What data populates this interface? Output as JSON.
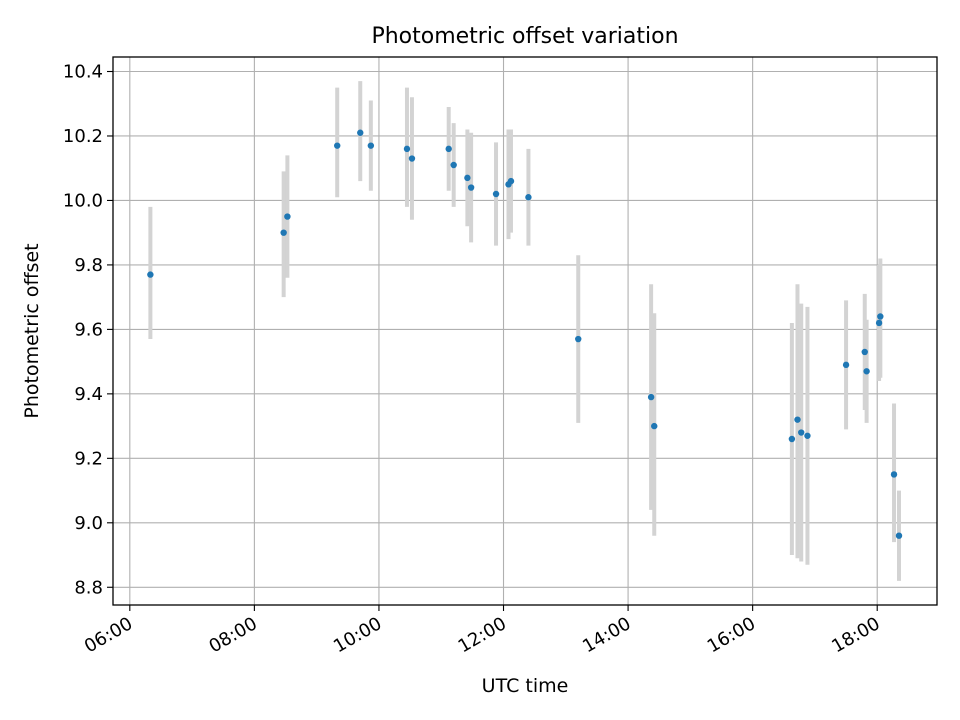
{
  "chart_data": {
    "type": "scatter",
    "title": "Photometric offset variation",
    "xlabel": "UTC time",
    "ylabel": "Photometric offset",
    "x_unit": "hours UTC",
    "xlim": [
      5.73,
      18.96
    ],
    "ylim": [
      8.745,
      10.445
    ],
    "xticks": [
      6,
      8,
      10,
      12,
      14,
      16,
      18
    ],
    "xtick_labels": [
      "06:00",
      "08:00",
      "10:00",
      "12:00",
      "14:00",
      "16:00",
      "18:00"
    ],
    "yticks": [
      8.8,
      9.0,
      9.2,
      9.4,
      9.6,
      9.8,
      10.0,
      10.2,
      10.4
    ],
    "ytick_labels": [
      "8.8",
      "9.0",
      "9.2",
      "9.4",
      "9.6",
      "9.8",
      "10.0",
      "10.2",
      "10.4"
    ],
    "grid": true,
    "legend": "none",
    "colors": {
      "point": "#1f77b4",
      "errorbar": "#d3d3d3",
      "grid": "#b0b0b0"
    },
    "points": [
      {
        "x": 6.33,
        "y": 9.77,
        "lo": 9.57,
        "hi": 9.98
      },
      {
        "x": 8.47,
        "y": 9.9,
        "lo": 9.7,
        "hi": 10.09
      },
      {
        "x": 8.53,
        "y": 9.95,
        "lo": 9.76,
        "hi": 10.14
      },
      {
        "x": 9.33,
        "y": 10.17,
        "lo": 10.01,
        "hi": 10.35
      },
      {
        "x": 9.7,
        "y": 10.21,
        "lo": 10.06,
        "hi": 10.37
      },
      {
        "x": 9.87,
        "y": 10.17,
        "lo": 10.03,
        "hi": 10.31
      },
      {
        "x": 10.45,
        "y": 10.16,
        "lo": 9.98,
        "hi": 10.35
      },
      {
        "x": 10.53,
        "y": 10.13,
        "lo": 9.94,
        "hi": 10.32
      },
      {
        "x": 11.12,
        "y": 10.16,
        "lo": 10.03,
        "hi": 10.29
      },
      {
        "x": 11.2,
        "y": 10.11,
        "lo": 9.98,
        "hi": 10.24
      },
      {
        "x": 11.42,
        "y": 10.07,
        "lo": 9.92,
        "hi": 10.22
      },
      {
        "x": 11.48,
        "y": 10.04,
        "lo": 9.87,
        "hi": 10.21
      },
      {
        "x": 11.88,
        "y": 10.02,
        "lo": 9.86,
        "hi": 10.18
      },
      {
        "x": 12.08,
        "y": 10.05,
        "lo": 9.88,
        "hi": 10.22
      },
      {
        "x": 12.12,
        "y": 10.06,
        "lo": 9.9,
        "hi": 10.22
      },
      {
        "x": 12.4,
        "y": 10.01,
        "lo": 9.86,
        "hi": 10.16
      },
      {
        "x": 13.2,
        "y": 9.57,
        "lo": 9.31,
        "hi": 9.83
      },
      {
        "x": 14.37,
        "y": 9.39,
        "lo": 9.04,
        "hi": 9.74
      },
      {
        "x": 14.42,
        "y": 9.3,
        "lo": 8.96,
        "hi": 9.65
      },
      {
        "x": 16.63,
        "y": 9.26,
        "lo": 8.9,
        "hi": 9.62
      },
      {
        "x": 16.72,
        "y": 9.32,
        "lo": 8.89,
        "hi": 9.74
      },
      {
        "x": 16.78,
        "y": 9.28,
        "lo": 8.88,
        "hi": 9.68
      },
      {
        "x": 16.88,
        "y": 9.27,
        "lo": 8.87,
        "hi": 9.67
      },
      {
        "x": 17.5,
        "y": 9.49,
        "lo": 9.29,
        "hi": 9.69
      },
      {
        "x": 17.8,
        "y": 9.53,
        "lo": 9.35,
        "hi": 9.71
      },
      {
        "x": 17.83,
        "y": 9.47,
        "lo": 9.31,
        "hi": 9.63
      },
      {
        "x": 18.03,
        "y": 9.62,
        "lo": 9.44,
        "hi": 9.8
      },
      {
        "x": 18.05,
        "y": 9.64,
        "lo": 9.45,
        "hi": 9.82
      },
      {
        "x": 18.27,
        "y": 9.15,
        "lo": 8.94,
        "hi": 9.37
      },
      {
        "x": 18.35,
        "y": 8.96,
        "lo": 8.82,
        "hi": 9.1
      }
    ]
  }
}
